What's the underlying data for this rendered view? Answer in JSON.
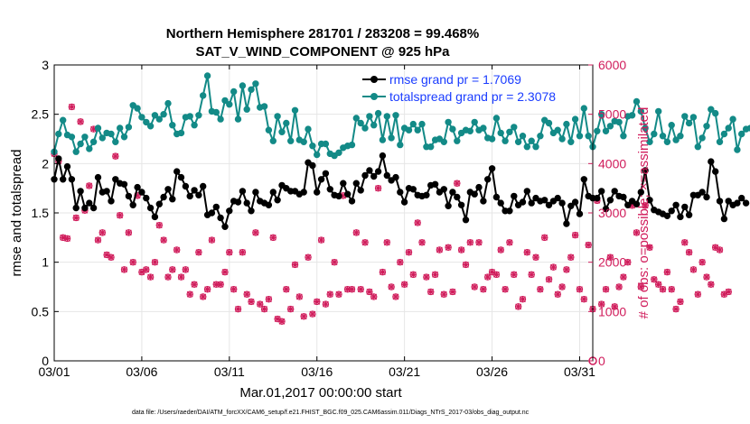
{
  "chart_data": {
    "type": "line",
    "title": "Northern Hemisphere 281701 / 283208 = 99.468%",
    "subtitle": "SAT_V_WIND_COMPONENT @ 925 hPa",
    "xlabel": "Mar.01,2017 00:00:00 start",
    "ylabel": "rmse and totalspread",
    "ylabel_right": "# of obs: o=possible; ×=assimilated",
    "footnote": "data file: /Users/raeder/DAI/ATM_forcXX/CAM6_setup/f.e21.FHIST_BGC.f09_025.CAM6assim.011/Diags_NTrS_2017-03/obs_diag_output.nc",
    "x_tick_labels": [
      "03/01",
      "03/06",
      "03/11",
      "03/16",
      "03/21",
      "03/26",
      "03/31"
    ],
    "x_tick_days": [
      1,
      6,
      11,
      16,
      21,
      26,
      31
    ],
    "xlim_days": [
      1,
      31.75
    ],
    "ylim": [
      0,
      3
    ],
    "y_ticks": [
      "0",
      "0.5",
      "1",
      "1.5",
      "2",
      "2.5",
      "3"
    ],
    "ylim_right": [
      0,
      6000
    ],
    "y_ticks_right": [
      "0",
      "1000",
      "2000",
      "3000",
      "4000",
      "5000",
      "6000"
    ],
    "grid": true,
    "legend_position": "top-right",
    "colors": {
      "rmse": "#000000",
      "totalspread": "#138a87",
      "obs": "#d01c5b",
      "legend_text": "#1a3cff"
    },
    "series": [
      {
        "name": "rmse grand pr = 1.7069",
        "axis": "left",
        "x_day_start": 1,
        "x_step_days": 0.25,
        "values": [
          1.84,
          2.05,
          1.84,
          1.97,
          1.84,
          1.55,
          1.72,
          1.55,
          1.6,
          1.55,
          1.86,
          1.71,
          1.72,
          1.62,
          1.84,
          1.8,
          1.79,
          1.67,
          1.58,
          1.76,
          1.71,
          1.65,
          1.55,
          1.46,
          1.59,
          1.66,
          1.74,
          1.64,
          1.92,
          1.86,
          1.77,
          1.67,
          1.73,
          1.68,
          1.77,
          1.48,
          1.5,
          1.56,
          1.45,
          1.36,
          1.52,
          1.62,
          1.61,
          1.72,
          1.6,
          1.52,
          1.71,
          1.62,
          1.6,
          1.58,
          1.71,
          1.63,
          1.78,
          1.75,
          1.72,
          1.72,
          1.69,
          1.71,
          2.01,
          1.98,
          1.71,
          1.84,
          1.9,
          1.74,
          1.68,
          1.67,
          1.8,
          1.69,
          1.62,
          1.8,
          1.73,
          1.88,
          1.93,
          1.87,
          1.92,
          2.08,
          1.88,
          1.83,
          1.86,
          1.71,
          1.61,
          1.75,
          1.74,
          1.68,
          1.67,
          1.68,
          1.78,
          1.79,
          1.71,
          1.74,
          1.57,
          1.71,
          1.66,
          1.58,
          1.43,
          1.71,
          1.69,
          1.76,
          1.62,
          1.84,
          1.95,
          1.66,
          1.6,
          1.52,
          1.52,
          1.67,
          1.58,
          1.61,
          1.72,
          1.6,
          1.65,
          1.62,
          1.63,
          1.58,
          1.62,
          1.65,
          1.6,
          1.39,
          1.57,
          1.61,
          1.49,
          1.84,
          1.67,
          1.65,
          1.65,
          1.72,
          1.54,
          1.63,
          1.72,
          1.67,
          1.66,
          1.58,
          1.62,
          1.59,
          1.71,
          1.93,
          1.63,
          1.53,
          1.51,
          1.49,
          1.47,
          1.52,
          1.58,
          1.46,
          1.56,
          1.48,
          1.68,
          1.68,
          1.71,
          1.66,
          2.02,
          1.92,
          1.62,
          1.44,
          1.62,
          1.58,
          1.6,
          1.65,
          1.6
        ]
      },
      {
        "name": "totalspread grand pr = 2.3078",
        "axis": "left",
        "x_day_start": 1,
        "x_step_days": 0.25,
        "values": [
          2.12,
          2.3,
          2.44,
          2.29,
          2.27,
          2.12,
          2.2,
          2.27,
          2.15,
          2.22,
          2.36,
          2.26,
          2.31,
          2.3,
          2.22,
          2.36,
          2.27,
          2.37,
          2.59,
          2.56,
          2.47,
          2.42,
          2.38,
          2.49,
          2.45,
          2.5,
          2.61,
          2.39,
          2.3,
          2.31,
          2.47,
          2.48,
          2.39,
          2.49,
          2.69,
          2.89,
          2.53,
          2.52,
          2.45,
          2.64,
          2.6,
          2.73,
          2.45,
          2.79,
          2.55,
          2.75,
          2.81,
          2.57,
          2.58,
          2.34,
          2.23,
          2.48,
          2.32,
          2.41,
          2.23,
          2.54,
          2.24,
          2.22,
          2.35,
          2.18,
          2.09,
          2.2,
          2.2,
          2.1,
          2.08,
          2.11,
          2.16,
          2.18,
          2.19,
          2.46,
          2.41,
          2.36,
          2.48,
          2.39,
          2.51,
          2.24,
          2.48,
          2.26,
          2.49,
          2.19,
          2.36,
          2.34,
          2.4,
          2.34,
          2.4,
          2.17,
          2.17,
          2.24,
          2.25,
          2.22,
          2.42,
          2.35,
          2.23,
          2.31,
          2.34,
          2.33,
          2.42,
          2.34,
          2.36,
          2.26,
          2.25,
          2.46,
          2.31,
          2.23,
          2.32,
          2.37,
          2.22,
          2.28,
          2.17,
          2.23,
          2.17,
          2.28,
          2.44,
          2.41,
          2.31,
          2.34,
          2.25,
          2.4,
          2.22,
          2.45,
          2.28,
          2.56,
          2.28,
          2.17,
          2.33,
          2.5,
          2.33,
          2.38,
          2.43,
          2.42,
          2.28,
          2.48,
          2.49,
          2.63,
          2.53,
          2.36,
          2.22,
          2.3,
          2.53,
          2.28,
          2.22,
          2.39,
          2.24,
          2.28,
          2.48,
          2.41,
          2.47,
          2.17,
          2.26,
          2.38,
          2.55,
          2.51,
          2.22,
          2.3,
          2.36,
          2.45,
          2.14,
          2.3,
          2.35,
          2.36
        ]
      },
      {
        "name": "observations (o=possible; ×=assimilated)",
        "axis": "right",
        "x_day_start": 1,
        "x_step_days": 0.25,
        "values": [
          4200,
          4050,
          2500,
          2480,
          5150,
          2900,
          4850,
          3050,
          3550,
          4700,
          2450,
          2600,
          2150,
          2100,
          4150,
          2950,
          1850,
          2600,
          2000,
          3350,
          1800,
          1850,
          1700,
          2000,
          2750,
          2450,
          1700,
          1850,
          2250,
          1700,
          1850,
          1350,
          1550,
          2200,
          1300,
          1450,
          2450,
          1550,
          1550,
          1800,
          2200,
          1450,
          1050,
          2200,
          1350,
          1200,
          2600,
          1150,
          1050,
          1250,
          2500,
          850,
          800,
          1450,
          1050,
          1950,
          1300,
          900,
          2100,
          950,
          1200,
          2450,
          1150,
          1350,
          2000,
          1350,
          3350,
          1450,
          1450,
          2600,
          1450,
          2400,
          1400,
          1300,
          3500,
          1800,
          2400,
          1500,
          1300,
          2000,
          1550,
          2200,
          1750,
          2800,
          2400,
          1700,
          1400,
          1750,
          2250,
          1350,
          2300,
          1400,
          3600,
          2250,
          1950,
          2400,
          1500,
          2400,
          1450,
          1700,
          1800,
          1750,
          2250,
          1450,
          2400,
          1750,
          1100,
          1250,
          2200,
          1750,
          2100,
          1450,
          2500,
          1650,
          1900,
          1350,
          1500,
          1850,
          2100,
          2550,
          1450,
          1250,
          2350,
          1050,
          3250,
          1150,
          1450,
          2100,
          1100,
          1500,
          1700,
          2000,
          3150,
          2600,
          1500,
          3150,
          2300,
          1650,
          1550,
          1450,
          1800,
          1450,
          1050,
          1200,
          2400,
          2200,
          1850,
          1350,
          2000,
          1700,
          1550,
          2300,
          2250,
          1350,
          1400
        ]
      }
    ]
  }
}
